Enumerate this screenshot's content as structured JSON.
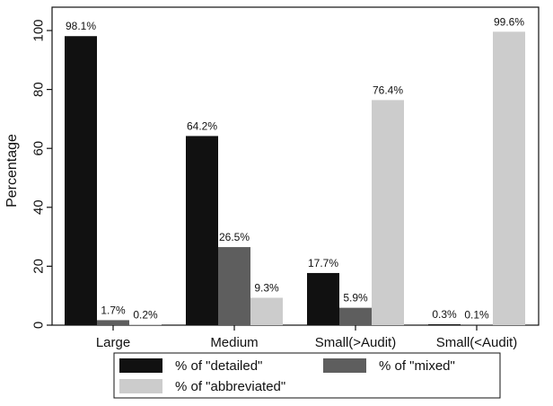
{
  "chart_data": {
    "type": "bar",
    "title": "",
    "xlabel": "",
    "ylabel": "Percentage",
    "ylim": [
      0,
      100
    ],
    "yticks": [
      0,
      20,
      40,
      60,
      80,
      100
    ],
    "categories": [
      "Large",
      "Medium",
      "Small(>Audit)",
      "Small(<Audit)"
    ],
    "series": [
      {
        "name": "% of \"detailed\"",
        "color": "#111111",
        "values": [
          98.1,
          64.2,
          17.7,
          0.3
        ],
        "labels": [
          "98.1%",
          "64.2%",
          "17.7%",
          "0.3%"
        ]
      },
      {
        "name": "% of \"mixed\"",
        "color": "#5e5e5e",
        "values": [
          1.7,
          26.5,
          5.9,
          0.1
        ],
        "labels": [
          "1.7%",
          "26.5%",
          "5.9%",
          "0.1%"
        ]
      },
      {
        "name": "% of \"abbreviated\"",
        "color": "#cccccc",
        "values": [
          0.2,
          9.3,
          76.4,
          99.6
        ],
        "labels": [
          "0.2%",
          "9.3%",
          "76.4%",
          "99.6%"
        ]
      }
    ],
    "grid": false,
    "legend_position": "bottom"
  }
}
